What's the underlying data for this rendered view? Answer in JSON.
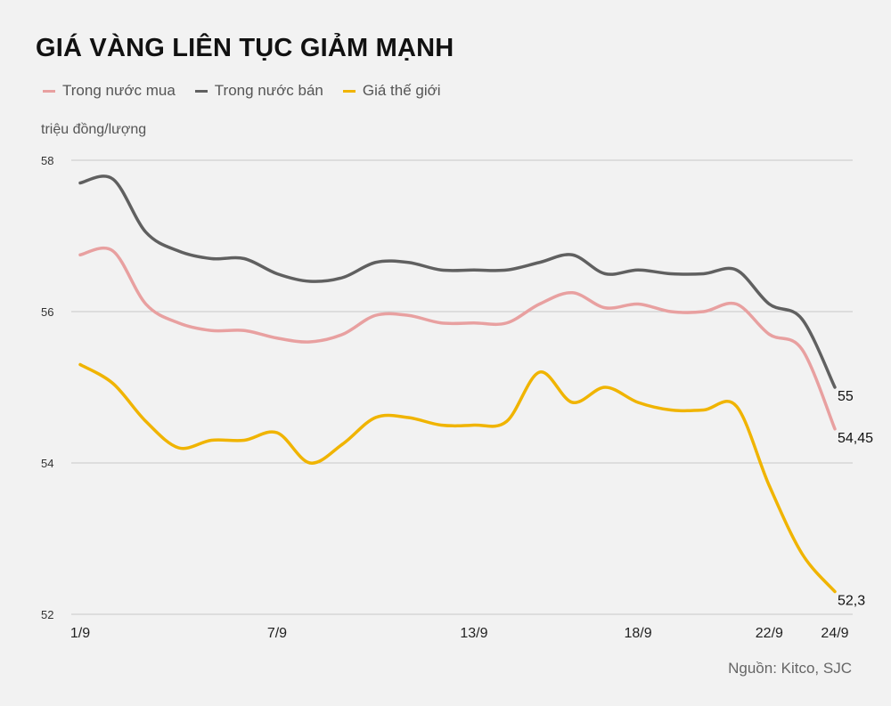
{
  "title": "GIÁ VÀNG LIÊN TỤC GIẢM MẠNH",
  "unit_label": "triệu đồng/lượng",
  "source": "Nguồn: Kitco, SJC",
  "chart_data": {
    "type": "line",
    "title": "GIÁ VÀNG LIÊN TỤC GIẢM MẠNH",
    "ylabel": "triệu đồng/lượng",
    "ylim": [
      52,
      58
    ],
    "yticks": [
      "52",
      "54",
      "56",
      "58"
    ],
    "grid": true,
    "legend": "top-left",
    "x": [
      "1/9",
      "2/9",
      "3/9",
      "4/9",
      "5/9",
      "6/9",
      "7/9",
      "8/9",
      "9/9",
      "10/9",
      "11/9",
      "12/9",
      "13/9",
      "14/9",
      "15/9",
      "16/9",
      "17/9",
      "18/9",
      "19/9",
      "20/9",
      "21/9",
      "22/9",
      "23/9",
      "24/9"
    ],
    "xtick_labels": [
      "1/9",
      "7/9",
      "13/9",
      "18/9",
      "22/9",
      "24/9"
    ],
    "series": [
      {
        "name": "Trong nước mua",
        "color": "#e8a0a0",
        "values": [
          56.75,
          56.8,
          56.1,
          55.85,
          55.75,
          55.75,
          55.65,
          55.6,
          55.7,
          55.95,
          55.95,
          55.85,
          55.85,
          55.85,
          56.1,
          56.25,
          56.05,
          56.1,
          56.0,
          56.0,
          56.1,
          55.7,
          55.5,
          54.45
        ],
        "end_label": "54,45"
      },
      {
        "name": "Trong nước bán",
        "color": "#606060",
        "values": [
          57.7,
          57.75,
          57.05,
          56.8,
          56.7,
          56.7,
          56.5,
          56.4,
          56.45,
          56.65,
          56.65,
          56.55,
          56.55,
          56.55,
          56.65,
          56.75,
          56.5,
          56.55,
          56.5,
          56.5,
          56.55,
          56.1,
          55.9,
          55.0
        ],
        "end_label": "55"
      },
      {
        "name": "Giá thế giới",
        "color": "#f0b400",
        "values": [
          55.3,
          55.05,
          54.55,
          54.2,
          54.3,
          54.3,
          54.4,
          54.0,
          54.25,
          54.6,
          54.6,
          54.5,
          54.5,
          54.55,
          55.2,
          54.8,
          55.0,
          54.8,
          54.7,
          54.7,
          54.75,
          53.7,
          52.8,
          52.3
        ],
        "end_label": "52,3"
      }
    ]
  }
}
